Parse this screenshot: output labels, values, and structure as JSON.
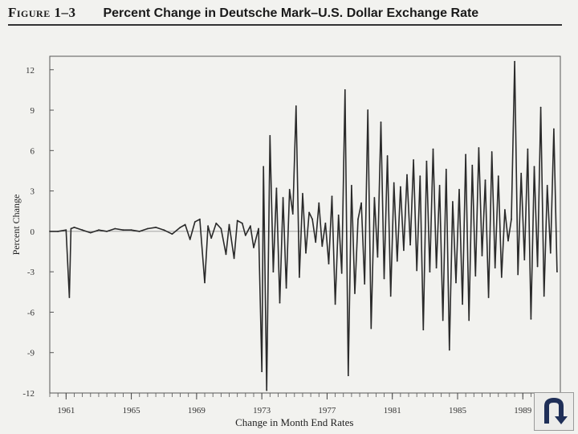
{
  "figure": {
    "label": "Figure 1–3",
    "title": "Percent Change in Deutsche Mark–U.S. Dollar Exchange Rate"
  },
  "nav": {
    "icon": "return-arrow-icon"
  },
  "chart_data": {
    "type": "line",
    "title": "Percent Change in Deutsche Mark–U.S. Dollar Exchange Rate",
    "xlabel": "Change in Month End Rates",
    "ylabel": "Percent Change",
    "xlim": [
      1960,
      1991.3
    ],
    "ylim": [
      -12,
      13
    ],
    "yticks": [
      12,
      9,
      6,
      3,
      0,
      -3,
      -6,
      -9,
      -12
    ],
    "xticks": [
      1961,
      1965,
      1969,
      1973,
      1977,
      1981,
      1985,
      1989
    ],
    "ytick_labels": [
      "12",
      "9",
      "6",
      "3",
      "0",
      "-3",
      "-6",
      "-9",
      "-12"
    ],
    "xtick_labels": [
      "1961",
      "1965",
      "1969",
      "1973",
      "1977",
      "1981",
      "1985",
      "1989"
    ],
    "grid": false,
    "zero_line": true,
    "series": [
      {
        "x": [
          1960.0,
          1960.5,
          1961.0,
          1961.2,
          1961.3,
          1961.5,
          1962.0,
          1962.5,
          1963.0,
          1963.5,
          1964.0,
          1964.5,
          1965.0,
          1965.5,
          1966.0,
          1966.5,
          1967.0,
          1967.5,
          1968.0,
          1968.3,
          1968.6,
          1968.9,
          1969.2,
          1969.5,
          1969.7,
          1969.9,
          1970.2,
          1970.5,
          1970.8,
          1971.0,
          1971.3,
          1971.5,
          1971.8,
          1972.0,
          1972.3,
          1972.5,
          1972.8,
          1973.0,
          1973.1,
          1973.3,
          1973.5,
          1973.7,
          1973.9,
          1974.1,
          1974.3,
          1974.5,
          1974.7,
          1974.9,
          1975.1,
          1975.3,
          1975.5,
          1975.7,
          1975.9,
          1976.1,
          1976.3,
          1976.5,
          1976.7,
          1976.9,
          1977.1,
          1977.3,
          1977.5,
          1977.7,
          1977.9,
          1978.1,
          1978.3,
          1978.5,
          1978.7,
          1978.9,
          1979.1,
          1979.3,
          1979.5,
          1979.7,
          1979.9,
          1980.1,
          1980.3,
          1980.5,
          1980.7,
          1980.9,
          1981.1,
          1981.3,
          1981.5,
          1981.7,
          1981.9,
          1982.1,
          1982.3,
          1982.5,
          1982.7,
          1982.9,
          1983.1,
          1983.3,
          1983.5,
          1983.7,
          1983.9,
          1984.1,
          1984.3,
          1984.5,
          1984.7,
          1984.9,
          1985.1,
          1985.3,
          1985.5,
          1985.7,
          1985.9,
          1986.1,
          1986.3,
          1986.5,
          1986.7,
          1986.9,
          1987.1,
          1987.3,
          1987.5,
          1987.7,
          1987.9,
          1988.1,
          1988.3,
          1988.5,
          1988.7,
          1988.9,
          1989.1,
          1989.3,
          1989.5,
          1989.7,
          1989.9,
          1990.1,
          1990.3,
          1990.5,
          1990.7,
          1990.9,
          1991.1
        ],
        "values": [
          0.0,
          0.0,
          0.1,
          -4.9,
          0.2,
          0.3,
          0.1,
          -0.1,
          0.1,
          0.0,
          0.2,
          0.1,
          0.1,
          0.0,
          0.2,
          0.3,
          0.1,
          -0.2,
          0.3,
          0.5,
          -0.6,
          0.7,
          0.9,
          -3.8,
          0.4,
          -0.5,
          0.6,
          0.2,
          -1.7,
          0.5,
          -2.0,
          0.8,
          0.6,
          -0.3,
          0.4,
          -1.2,
          0.2,
          -10.4,
          4.8,
          -11.8,
          7.1,
          -3.0,
          3.2,
          -5.3,
          2.5,
          -4.2,
          3.1,
          1.3,
          9.3,
          -3.4,
          2.8,
          -1.6,
          1.4,
          0.9,
          -0.8,
          2.1,
          -1.1,
          0.6,
          -2.4,
          2.6,
          -5.4,
          1.2,
          -3.1,
          10.5,
          -10.7,
          3.4,
          -4.6,
          0.9,
          2.1,
          -3.9,
          9.0,
          -7.2,
          2.5,
          -1.9,
          8.1,
          -3.5,
          5.6,
          -4.8,
          3.6,
          -2.2,
          3.3,
          -1.4,
          4.2,
          -1.0,
          5.3,
          -2.9,
          4.1,
          -7.3,
          5.2,
          -3.0,
          6.1,
          -2.7,
          3.4,
          -6.6,
          4.6,
          -8.8,
          2.2,
          -3.8,
          3.1,
          -5.4,
          5.7,
          -6.6,
          4.9,
          -3.3,
          6.2,
          -1.8,
          3.8,
          -4.9,
          5.9,
          -2.7,
          4.1,
          -3.4,
          1.6,
          -0.7,
          0.9,
          12.6,
          -3.2,
          4.3,
          -2.1,
          6.1,
          -6.5,
          4.8,
          -2.6,
          9.2,
          -4.8,
          3.4,
          -1.6,
          7.6,
          -3.0
        ]
      }
    ]
  }
}
